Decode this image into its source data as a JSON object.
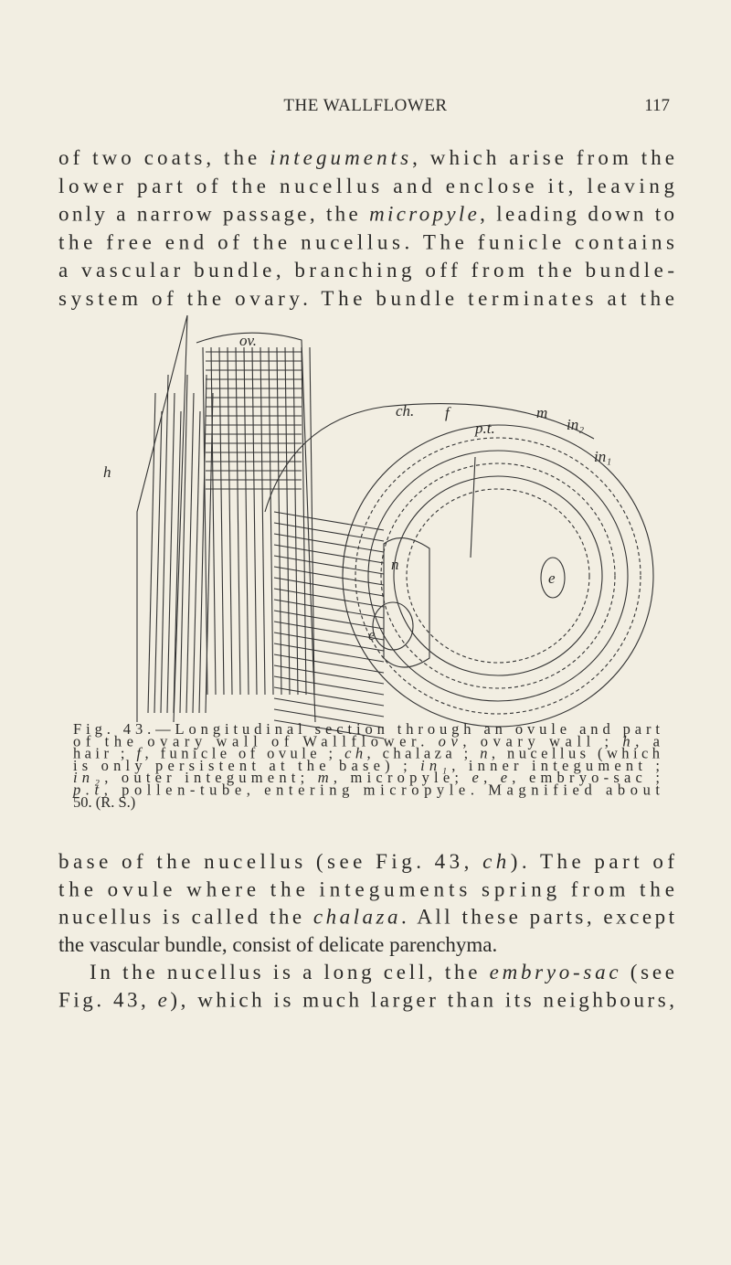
{
  "header": {
    "title": "THE WALLFLOWER",
    "page": "117"
  },
  "text_top": [
    [
      "of two coats, the ",
      {
        "text": "integuments",
        "italic": true
      },
      ", which arise from the"
    ],
    [
      "lower part of the nucellus and enclose it, leaving"
    ],
    [
      "only a narrow passage, the ",
      {
        "text": "micropyle",
        "italic": true
      },
      ", leading down to"
    ],
    [
      "the free end of the nucellus. The funicle contains"
    ],
    [
      "a vascular bundle, branching off from the bundle-"
    ],
    [
      "system of the ovary. The bundle terminates at the"
    ]
  ],
  "figure": {
    "labels": [
      "ov.",
      "ch.",
      "f",
      "p.t.",
      "m",
      "in₂",
      "in₁",
      "h",
      "n",
      "e",
      "e"
    ]
  },
  "caption": [
    [
      "Fig. 43.—Longitudinal section through an ovule and part"
    ],
    [
      "of the ovary wall of Wallflower. ",
      {
        "text": "ov",
        "italic": true
      },
      ", ovary wall ; ",
      {
        "text": "h",
        "italic": true
      },
      ", a"
    ],
    [
      "hair ; ",
      {
        "text": "f",
        "italic": true
      },
      ", funicle of ovule ; ",
      {
        "text": "ch",
        "italic": true
      },
      ", chalaza ; ",
      {
        "text": "n",
        "italic": true
      },
      ", nucellus (which"
    ],
    [
      "is only persistent at the base) ; ",
      {
        "text": "in₁",
        "italic": true
      },
      ", inner integument ;"
    ],
    [
      {
        "text": "in₂",
        "italic": true
      },
      ", outer integument; ",
      {
        "text": "m",
        "italic": true
      },
      ", micropyle; ",
      {
        "text": "e",
        "italic": true
      },
      ", ",
      {
        "text": "e",
        "italic": true
      },
      ", embryo-sac ;"
    ],
    [
      {
        "text": "p.t",
        "italic": true
      },
      ", pollen-tube, entering micropyle. Magnified about"
    ],
    [
      "50. (R. S.)"
    ]
  ],
  "text_bottom": [
    [
      "base of the nucellus (see Fig. 43, ",
      {
        "text": "ch",
        "italic": true
      },
      "). The part of"
    ],
    [
      "the ovule where the integuments spring from the"
    ],
    [
      "nucellus is called the ",
      {
        "text": "chalaza",
        "italic": true
      },
      ". All these parts, except"
    ],
    [
      "the vascular bundle, consist of delicate parenchyma."
    ],
    [
      "In the nucellus is a long cell, the ",
      {
        "text": "embryo-sac",
        "italic": true
      },
      " (see"
    ],
    [
      "Fig. 43, ",
      {
        "text": "e",
        "italic": true
      },
      "), which is much larger than its neighbours,"
    ]
  ]
}
